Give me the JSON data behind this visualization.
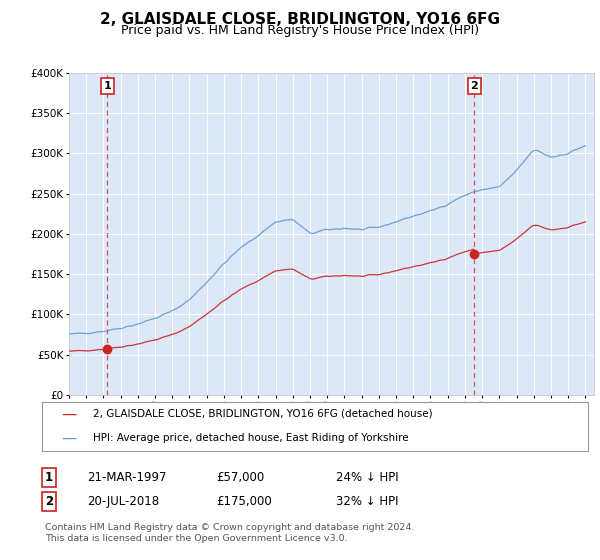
{
  "title": "2, GLAISDALE CLOSE, BRIDLINGTON, YO16 6FG",
  "subtitle": "Price paid vs. HM Land Registry's House Price Index (HPI)",
  "title_fontsize": 11,
  "subtitle_fontsize": 9,
  "ylim": [
    0,
    400000
  ],
  "xlim_start": 1995.0,
  "xlim_end": 2025.5,
  "yticks": [
    0,
    50000,
    100000,
    150000,
    200000,
    250000,
    300000,
    350000,
    400000
  ],
  "ytick_labels": [
    "£0",
    "£50K",
    "£100K",
    "£150K",
    "£200K",
    "£250K",
    "£300K",
    "£350K",
    "£400K"
  ],
  "plot_bg_color": "#dce8f8",
  "red_line_color": "#cc2222",
  "blue_line_color": "#6699cc",
  "sale1_x": 1997.22,
  "sale1_y": 57000,
  "sale2_x": 2018.54,
  "sale2_y": 175000,
  "sale1_label": "1",
  "sale2_label": "2",
  "legend_red": "2, GLAISDALE CLOSE, BRIDLINGTON, YO16 6FG (detached house)",
  "legend_blue": "HPI: Average price, detached house, East Riding of Yorkshire",
  "footer": "Contains HM Land Registry data © Crown copyright and database right 2024.\nThis data is licensed under the Open Government Licence v3.0.",
  "table_rows": [
    [
      "1",
      "21-MAR-1997",
      "£57,000",
      "24% ↓ HPI"
    ],
    [
      "2",
      "20-JUL-2018",
      "£175,000",
      "32% ↓ HPI"
    ]
  ]
}
